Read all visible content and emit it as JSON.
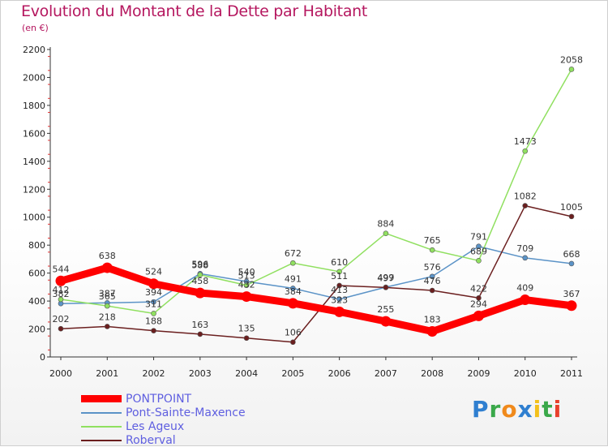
{
  "header": {
    "title": "Evolution du Montant de la Dette par Habitant",
    "subtitle": "(en €)"
  },
  "brand": {
    "letters": [
      {
        "ch": "P",
        "color": "#2f7fd0"
      },
      {
        "ch": "r",
        "color": "#3aa84a"
      },
      {
        "ch": "o",
        "color": "#f08a1c"
      },
      {
        "ch": "x",
        "color": "#2f7fd0"
      },
      {
        "ch": "i",
        "color": "#f3c01b"
      },
      {
        "ch": "t",
        "color": "#3aa84a"
      },
      {
        "ch": "i",
        "color": "#e8402c"
      }
    ]
  },
  "chart_data": {
    "type": "line",
    "title": "Evolution du Montant de la Dette par Habitant",
    "subtitle": "(en €)",
    "xlabel": "",
    "ylabel": "",
    "x": [
      "2000",
      "2001",
      "2002",
      "2003",
      "2004",
      "2005",
      "2006",
      "2007",
      "2008",
      "2009",
      "2010",
      "2011"
    ],
    "ylim": [
      0,
      2200
    ],
    "yticks": [
      0,
      200,
      400,
      600,
      800,
      1000,
      1200,
      1400,
      1600,
      1800,
      2000,
      2200
    ],
    "grid": false,
    "legend_position": "bottom-left",
    "series": [
      {
        "name": "PONTPOINT",
        "color": "#ff0000",
        "emphasis": true,
        "values": [
          544,
          638,
          524,
          458,
          432,
          384,
          323,
          255,
          183,
          294,
          409,
          367
        ]
      },
      {
        "name": "Pont-Sainte-Maxence",
        "color": "#5b93c7",
        "emphasis": false,
        "values": [
          382,
          387,
          394,
          596,
          540,
          491,
          413,
          499,
          576,
          791,
          709,
          668
        ]
      },
      {
        "name": "Les Ageux",
        "color": "#90e060",
        "emphasis": false,
        "values": [
          412,
          365,
          311,
          588,
          513,
          672,
          610,
          884,
          765,
          689,
          1473,
          2058
        ]
      },
      {
        "name": "Roberval",
        "color": "#6b1f1f",
        "emphasis": false,
        "values": [
          202,
          218,
          188,
          163,
          135,
          106,
          511,
          497,
          476,
          422,
          1082,
          1005
        ]
      }
    ]
  }
}
